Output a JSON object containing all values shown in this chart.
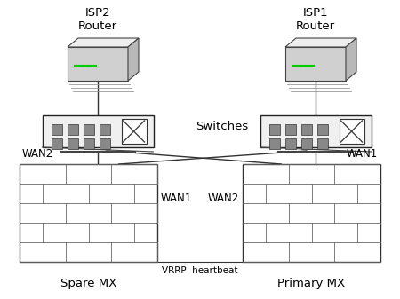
{
  "bg_color": "#ffffff",
  "isp2_label": "ISP2\nRouter",
  "isp1_label": "ISP1\nRouter",
  "switches_label": "Switches",
  "wan2_left_label": "WAN2",
  "wan1_left_label": "WAN1",
  "wan1_right_label": "WAN1",
  "wan2_right_label": "WAN2",
  "vrrp_label": "VRRP  heartbeat",
  "spare_mx_label": "Spare MX",
  "primary_mx_label": "Primary MX",
  "line_color": "#333333",
  "brick_wall_color": "#ffffff",
  "brick_line_color": "#666666",
  "switch_fill": "#f0f0f0",
  "switch_edge": "#222222",
  "router_body": "#d8d8d8",
  "router_top": "#eeeeee",
  "router_side": "#b0b0b0"
}
